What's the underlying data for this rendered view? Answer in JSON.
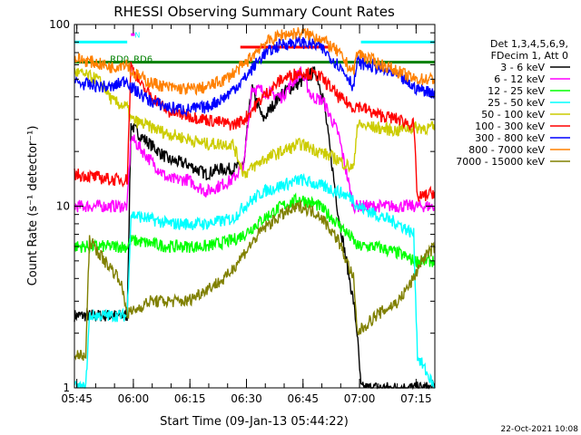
{
  "chart_data": {
    "type": "line",
    "title": "RHESSI Observing Summary Count Rates",
    "xlabel": "Start Time (09-Jan-13 05:44:22)",
    "ylabel": "Count Rate (s⁻¹ detector⁻¹)",
    "yscale": "log",
    "xlim_minutes": [
      0,
      95.6
    ],
    "ylim": [
      1,
      100
    ],
    "x_tick_labels": [
      "05:45",
      "06:00",
      "06:15",
      "06:30",
      "06:45",
      "07:00",
      "07:15"
    ],
    "x_tick_minutes": [
      0.63,
      15.63,
      30.63,
      45.63,
      60.63,
      75.63,
      90.63
    ],
    "y_tick_labels": [
      "1",
      "10",
      "100"
    ],
    "y_ticks": [
      1,
      10,
      100
    ],
    "legend": {
      "placement": "right",
      "header": [
        "Det 1,3,4,5,6,9,",
        "FDecim 1, Att 0"
      ],
      "entries": [
        "3 - 6 keV",
        "6 - 12 keV",
        "12 - 25 keV",
        "25 - 50 keV",
        "50 - 100 keV",
        "100 - 300 keV",
        "300 - 800 keV",
        "800 - 7000 keV",
        "7000 - 15000 keV"
      ]
    },
    "series": [
      {
        "name": "3 - 6 keV",
        "color": "#000000",
        "x": [
          0,
          14,
          15,
          17,
          20,
          25,
          30,
          35,
          38,
          42,
          45,
          47,
          50,
          55,
          60,
          62,
          64,
          66,
          70,
          74,
          75,
          76,
          95.6
        ],
        "y": [
          2.5,
          2.5,
          28,
          25,
          22,
          18,
          17,
          15,
          16,
          16,
          17,
          45,
          30,
          42,
          48,
          52,
          55,
          40,
          9,
          3,
          2,
          1,
          1
        ]
      },
      {
        "name": "6 - 12 keV",
        "color": "#ff00ff",
        "x": [
          0,
          14,
          15,
          20,
          25,
          30,
          35,
          42,
          45,
          47,
          55,
          60,
          63,
          66,
          70,
          74,
          75,
          76,
          95.6
        ],
        "y": [
          10,
          10,
          24,
          18,
          14,
          14,
          12,
          14,
          17,
          45,
          40,
          55,
          40,
          38,
          25,
          10,
          10,
          10,
          10
        ]
      },
      {
        "name": "12 - 25 keV",
        "color": "#00ff00",
        "x": [
          0,
          14,
          15,
          25,
          35,
          42,
          45,
          50,
          55,
          60,
          65,
          70,
          74,
          75,
          80,
          86,
          90,
          95.6
        ],
        "y": [
          6,
          6,
          6.5,
          6,
          6,
          6.5,
          7,
          8.5,
          10,
          11,
          10,
          8,
          6.5,
          6,
          6,
          5.5,
          5,
          5
        ]
      },
      {
        "name": "25 - 50 keV",
        "color": "#00ffff",
        "x": [
          0,
          3,
          4,
          14,
          15,
          25,
          35,
          42,
          45,
          50,
          55,
          60,
          65,
          70,
          74,
          75,
          80,
          86,
          90,
          91,
          95.6
        ],
        "y": [
          1,
          1,
          2.5,
          2.5,
          9,
          8,
          8,
          8.5,
          10,
          12,
          13,
          14,
          13,
          12,
          11,
          10,
          9,
          8,
          7,
          1.5,
          1
        ]
      },
      {
        "name": "50 - 100 keV",
        "color": "#cccc00",
        "x": [
          0,
          6,
          8,
          10,
          14,
          15,
          25,
          35,
          42,
          45,
          50,
          55,
          60,
          65,
          70,
          74,
          75,
          80,
          86,
          87,
          95.6
        ],
        "y": [
          55,
          50,
          45,
          38,
          35,
          30,
          25,
          22,
          22,
          15,
          18,
          20,
          22,
          20,
          18,
          16,
          28,
          27,
          26,
          27,
          27
        ]
      },
      {
        "name": "100 - 300 keV",
        "color": "#ff0000",
        "x": [
          0,
          5,
          10,
          14,
          15,
          18,
          25,
          35,
          42,
          45,
          50,
          55,
          60,
          65,
          68,
          70,
          74,
          75,
          80,
          86,
          90,
          91,
          95.6
        ],
        "y": [
          15,
          14.5,
          14,
          14,
          60,
          45,
          33,
          30,
          28,
          30,
          40,
          50,
          55,
          52,
          45,
          40,
          35,
          36,
          32,
          30,
          28,
          11,
          12
        ]
      },
      {
        "name": "300 - 800 keV",
        "color": "#0000ff",
        "x": [
          0,
          5,
          10,
          14,
          15,
          20,
          25,
          30,
          35,
          40,
          45,
          50,
          55,
          60,
          65,
          70,
          73,
          74,
          75,
          80,
          86,
          90,
          95.6
        ],
        "y": [
          48,
          46,
          45,
          50,
          45,
          38,
          35,
          34,
          35,
          40,
          50,
          68,
          78,
          80,
          76,
          60,
          50,
          45,
          62,
          58,
          52,
          45,
          42
        ]
      },
      {
        "name": "800 - 7000 keV",
        "color": "#ff8000",
        "x": [
          0,
          5,
          10,
          14,
          15,
          20,
          25,
          30,
          35,
          40,
          45,
          50,
          55,
          60,
          65,
          70,
          73,
          74,
          75,
          80,
          86,
          90,
          95.6
        ],
        "y": [
          65,
          62,
          58,
          62,
          55,
          48,
          45,
          44,
          45,
          50,
          60,
          78,
          88,
          90,
          85,
          70,
          58,
          55,
          70,
          62,
          55,
          50,
          50
        ]
      },
      {
        "name": "7000 - 15000 keV",
        "color": "#808000",
        "x": [
          0,
          3,
          4,
          8,
          12,
          14,
          15,
          20,
          25,
          30,
          35,
          40,
          45,
          50,
          55,
          60,
          65,
          70,
          74,
          75,
          80,
          86,
          90,
          92,
          95.6
        ],
        "y": [
          1.5,
          1.5,
          6.5,
          5,
          4,
          2.6,
          2.6,
          3,
          3,
          3,
          3.5,
          4,
          5.5,
          7.5,
          9,
          10,
          9,
          6.5,
          4,
          2,
          2.5,
          3,
          4,
          5,
          6
        ]
      }
    ],
    "annotations": [
      {
        "text": "RD0",
        "color": "#008000",
        "y": 60
      },
      {
        "text": "RD6",
        "color": "#008000",
        "y": 60
      },
      {
        "text": "N",
        "color": "#00ffff",
        "y": 80
      }
    ],
    "state_bars": [
      {
        "color": "#00ffff",
        "x": [
          0,
          14
        ],
        "y": 80
      },
      {
        "color": "#00ffff",
        "x": [
          76,
          95.6
        ],
        "y": 80
      },
      {
        "color": "#008000",
        "x": [
          0,
          95.6
        ],
        "y": 62
      },
      {
        "color": "#ff0000",
        "x": [
          44,
          68
        ],
        "y": 75
      },
      {
        "color": "#ff00ff",
        "x": [
          15,
          16
        ],
        "y": 88
      }
    ],
    "footer_date": "22-Oct-2021 10:08"
  }
}
